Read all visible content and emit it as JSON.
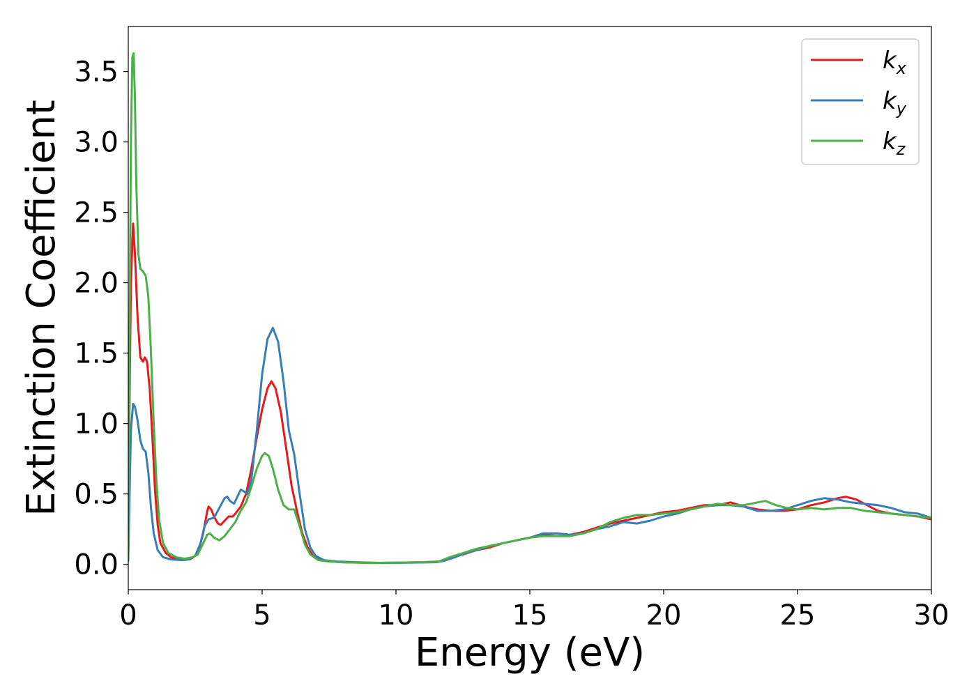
{
  "chart_data": {
    "type": "line",
    "xlabel": "Energy (eV)",
    "ylabel": "Extinction Coefficient",
    "xlim": [
      0,
      30
    ],
    "ylim": [
      -0.18,
      3.82
    ],
    "xticks": [
      0,
      5,
      10,
      15,
      20,
      25,
      30
    ],
    "xtick_labels": [
      "0",
      "5",
      "10",
      "15",
      "20",
      "25",
      "30"
    ],
    "yticks": [
      0.0,
      0.5,
      1.0,
      1.5,
      2.0,
      2.5,
      3.0,
      3.5
    ],
    "ytick_labels": [
      "0.0",
      "0.5",
      "1.0",
      "1.5",
      "2.0",
      "2.5",
      "3.0",
      "3.5"
    ],
    "grid": false,
    "legend_position": "top-right",
    "series": [
      {
        "name": "k",
        "subscript": "x",
        "color": "#e41a1c",
        "points": [
          [
            0,
            0.05
          ],
          [
            0.05,
            1.2
          ],
          [
            0.1,
            2.0
          ],
          [
            0.18,
            2.42
          ],
          [
            0.25,
            2.2
          ],
          [
            0.35,
            1.75
          ],
          [
            0.45,
            1.47
          ],
          [
            0.55,
            1.44
          ],
          [
            0.62,
            1.47
          ],
          [
            0.7,
            1.44
          ],
          [
            0.8,
            1.25
          ],
          [
            0.9,
            0.9
          ],
          [
            1.0,
            0.52
          ],
          [
            1.1,
            0.28
          ],
          [
            1.2,
            0.15
          ],
          [
            1.4,
            0.08
          ],
          [
            1.6,
            0.05
          ],
          [
            1.8,
            0.04
          ],
          [
            2.0,
            0.035
          ],
          [
            2.2,
            0.035
          ],
          [
            2.4,
            0.045
          ],
          [
            2.6,
            0.08
          ],
          [
            2.8,
            0.22
          ],
          [
            2.95,
            0.38
          ],
          [
            3.0,
            0.41
          ],
          [
            3.1,
            0.39
          ],
          [
            3.2,
            0.34
          ],
          [
            3.35,
            0.29
          ],
          [
            3.45,
            0.28
          ],
          [
            3.6,
            0.31
          ],
          [
            3.75,
            0.34
          ],
          [
            3.9,
            0.34
          ],
          [
            4.0,
            0.36
          ],
          [
            4.2,
            0.41
          ],
          [
            4.4,
            0.5
          ],
          [
            4.6,
            0.68
          ],
          [
            4.8,
            0.9
          ],
          [
            5.0,
            1.1
          ],
          [
            5.2,
            1.25
          ],
          [
            5.35,
            1.3
          ],
          [
            5.5,
            1.25
          ],
          [
            5.7,
            1.08
          ],
          [
            5.9,
            0.82
          ],
          [
            6.1,
            0.56
          ],
          [
            6.3,
            0.38
          ],
          [
            6.5,
            0.22
          ],
          [
            6.7,
            0.12
          ],
          [
            6.9,
            0.06
          ],
          [
            7.2,
            0.03
          ],
          [
            7.6,
            0.02
          ],
          [
            8,
            0.015
          ],
          [
            9,
            0.01
          ],
          [
            10,
            0.012
          ],
          [
            11,
            0.015
          ],
          [
            11.6,
            0.02
          ],
          [
            11.9,
            0.035
          ],
          [
            12.2,
            0.06
          ],
          [
            12.5,
            0.07
          ],
          [
            13,
            0.1
          ],
          [
            13.5,
            0.12
          ],
          [
            14,
            0.15
          ],
          [
            14.5,
            0.17
          ],
          [
            15,
            0.19
          ],
          [
            15.5,
            0.21
          ],
          [
            16,
            0.22
          ],
          [
            16.5,
            0.21
          ],
          [
            17,
            0.23
          ],
          [
            17.5,
            0.26
          ],
          [
            18,
            0.29
          ],
          [
            18.5,
            0.31
          ],
          [
            19,
            0.33
          ],
          [
            19.5,
            0.35
          ],
          [
            20,
            0.37
          ],
          [
            20.5,
            0.38
          ],
          [
            21,
            0.4
          ],
          [
            21.5,
            0.42
          ],
          [
            22,
            0.42
          ],
          [
            22.5,
            0.44
          ],
          [
            23,
            0.41
          ],
          [
            23.5,
            0.39
          ],
          [
            24,
            0.38
          ],
          [
            24.5,
            0.38
          ],
          [
            25,
            0.39
          ],
          [
            25.5,
            0.42
          ],
          [
            26,
            0.44
          ],
          [
            26.5,
            0.47
          ],
          [
            26.8,
            0.48
          ],
          [
            27.2,
            0.46
          ],
          [
            27.6,
            0.42
          ],
          [
            28,
            0.38
          ],
          [
            28.5,
            0.36
          ],
          [
            29,
            0.35
          ],
          [
            29.5,
            0.34
          ],
          [
            30,
            0.32
          ]
        ]
      },
      {
        "name": "k",
        "subscript": "y",
        "color": "#377eb8",
        "points": [
          [
            0,
            0.02
          ],
          [
            0.05,
            0.5
          ],
          [
            0.1,
            0.95
          ],
          [
            0.18,
            1.14
          ],
          [
            0.25,
            1.12
          ],
          [
            0.35,
            1.02
          ],
          [
            0.45,
            0.88
          ],
          [
            0.55,
            0.82
          ],
          [
            0.65,
            0.8
          ],
          [
            0.75,
            0.65
          ],
          [
            0.85,
            0.4
          ],
          [
            0.95,
            0.22
          ],
          [
            1.1,
            0.1
          ],
          [
            1.3,
            0.05
          ],
          [
            1.6,
            0.035
          ],
          [
            2.0,
            0.03
          ],
          [
            2.3,
            0.035
          ],
          [
            2.5,
            0.06
          ],
          [
            2.7,
            0.15
          ],
          [
            2.85,
            0.27
          ],
          [
            3.0,
            0.32
          ],
          [
            3.2,
            0.33
          ],
          [
            3.4,
            0.4
          ],
          [
            3.6,
            0.47
          ],
          [
            3.7,
            0.48
          ],
          [
            3.8,
            0.45
          ],
          [
            3.95,
            0.43
          ],
          [
            4.1,
            0.49
          ],
          [
            4.2,
            0.53
          ],
          [
            4.3,
            0.52
          ],
          [
            4.45,
            0.5
          ],
          [
            4.6,
            0.6
          ],
          [
            4.8,
            0.95
          ],
          [
            5.0,
            1.35
          ],
          [
            5.2,
            1.6
          ],
          [
            5.4,
            1.68
          ],
          [
            5.6,
            1.58
          ],
          [
            5.8,
            1.3
          ],
          [
            6.0,
            0.95
          ],
          [
            6.2,
            0.78
          ],
          [
            6.4,
            0.5
          ],
          [
            6.6,
            0.25
          ],
          [
            6.8,
            0.12
          ],
          [
            7.0,
            0.06
          ],
          [
            7.3,
            0.03
          ],
          [
            7.8,
            0.02
          ],
          [
            8.5,
            0.015
          ],
          [
            9.5,
            0.01
          ],
          [
            10.5,
            0.012
          ],
          [
            11.5,
            0.015
          ],
          [
            11.8,
            0.025
          ],
          [
            12.2,
            0.05
          ],
          [
            12.6,
            0.08
          ],
          [
            13,
            0.1
          ],
          [
            13.5,
            0.13
          ],
          [
            14,
            0.15
          ],
          [
            14.5,
            0.17
          ],
          [
            15,
            0.19
          ],
          [
            15.5,
            0.22
          ],
          [
            16,
            0.22
          ],
          [
            16.5,
            0.21
          ],
          [
            17,
            0.22
          ],
          [
            17.5,
            0.25
          ],
          [
            18,
            0.27
          ],
          [
            18.5,
            0.3
          ],
          [
            19,
            0.29
          ],
          [
            19.5,
            0.31
          ],
          [
            20,
            0.34
          ],
          [
            20.5,
            0.36
          ],
          [
            21,
            0.39
          ],
          [
            21.5,
            0.41
          ],
          [
            22,
            0.42
          ],
          [
            22.5,
            0.42
          ],
          [
            23,
            0.41
          ],
          [
            23.5,
            0.38
          ],
          [
            24,
            0.38
          ],
          [
            24.5,
            0.39
          ],
          [
            25,
            0.42
          ],
          [
            25.5,
            0.45
          ],
          [
            26,
            0.47
          ],
          [
            26.5,
            0.46
          ],
          [
            27,
            0.44
          ],
          [
            27.5,
            0.43
          ],
          [
            28,
            0.42
          ],
          [
            28.5,
            0.4
          ],
          [
            29,
            0.37
          ],
          [
            29.5,
            0.36
          ],
          [
            30,
            0.33
          ]
        ]
      },
      {
        "name": "k",
        "subscript": "z",
        "color": "#4daf4a",
        "points": [
          [
            0,
            0.05
          ],
          [
            0.05,
            1.6
          ],
          [
            0.1,
            3.0
          ],
          [
            0.15,
            3.6
          ],
          [
            0.2,
            3.63
          ],
          [
            0.25,
            3.3
          ],
          [
            0.3,
            2.7
          ],
          [
            0.38,
            2.2
          ],
          [
            0.45,
            2.1
          ],
          [
            0.55,
            2.08
          ],
          [
            0.65,
            2.05
          ],
          [
            0.75,
            1.9
          ],
          [
            0.85,
            1.5
          ],
          [
            0.95,
            1.0
          ],
          [
            1.05,
            0.6
          ],
          [
            1.15,
            0.32
          ],
          [
            1.3,
            0.15
          ],
          [
            1.5,
            0.08
          ],
          [
            1.8,
            0.05
          ],
          [
            2.1,
            0.04
          ],
          [
            2.4,
            0.05
          ],
          [
            2.6,
            0.07
          ],
          [
            2.8,
            0.15
          ],
          [
            2.95,
            0.21
          ],
          [
            3.05,
            0.22
          ],
          [
            3.2,
            0.19
          ],
          [
            3.4,
            0.17
          ],
          [
            3.6,
            0.2
          ],
          [
            3.8,
            0.25
          ],
          [
            4.0,
            0.3
          ],
          [
            4.2,
            0.38
          ],
          [
            4.4,
            0.44
          ],
          [
            4.6,
            0.55
          ],
          [
            4.8,
            0.68
          ],
          [
            5.0,
            0.77
          ],
          [
            5.1,
            0.79
          ],
          [
            5.25,
            0.77
          ],
          [
            5.4,
            0.68
          ],
          [
            5.6,
            0.53
          ],
          [
            5.8,
            0.42
          ],
          [
            6.0,
            0.39
          ],
          [
            6.2,
            0.39
          ],
          [
            6.4,
            0.27
          ],
          [
            6.6,
            0.14
          ],
          [
            6.8,
            0.07
          ],
          [
            7.1,
            0.03
          ],
          [
            7.5,
            0.02
          ],
          [
            8,
            0.015
          ],
          [
            9,
            0.01
          ],
          [
            10,
            0.012
          ],
          [
            11,
            0.015
          ],
          [
            11.6,
            0.02
          ],
          [
            12,
            0.05
          ],
          [
            12.5,
            0.08
          ],
          [
            13,
            0.11
          ],
          [
            13.5,
            0.13
          ],
          [
            14,
            0.15
          ],
          [
            14.5,
            0.17
          ],
          [
            15,
            0.19
          ],
          [
            15.5,
            0.2
          ],
          [
            16,
            0.2
          ],
          [
            16.5,
            0.2
          ],
          [
            17,
            0.22
          ],
          [
            17.5,
            0.25
          ],
          [
            18,
            0.3
          ],
          [
            18.5,
            0.33
          ],
          [
            19,
            0.35
          ],
          [
            19.5,
            0.35
          ],
          [
            20,
            0.36
          ],
          [
            20.5,
            0.37
          ],
          [
            21,
            0.39
          ],
          [
            21.5,
            0.41
          ],
          [
            22,
            0.43
          ],
          [
            22.5,
            0.42
          ],
          [
            23,
            0.42
          ],
          [
            23.5,
            0.44
          ],
          [
            23.8,
            0.45
          ],
          [
            24.2,
            0.42
          ],
          [
            24.6,
            0.4
          ],
          [
            25,
            0.39
          ],
          [
            25.5,
            0.4
          ],
          [
            26,
            0.39
          ],
          [
            26.5,
            0.4
          ],
          [
            27,
            0.4
          ],
          [
            27.5,
            0.38
          ],
          [
            28,
            0.37
          ],
          [
            28.5,
            0.36
          ],
          [
            29,
            0.35
          ],
          [
            29.5,
            0.34
          ],
          [
            30,
            0.33
          ]
        ]
      }
    ]
  }
}
